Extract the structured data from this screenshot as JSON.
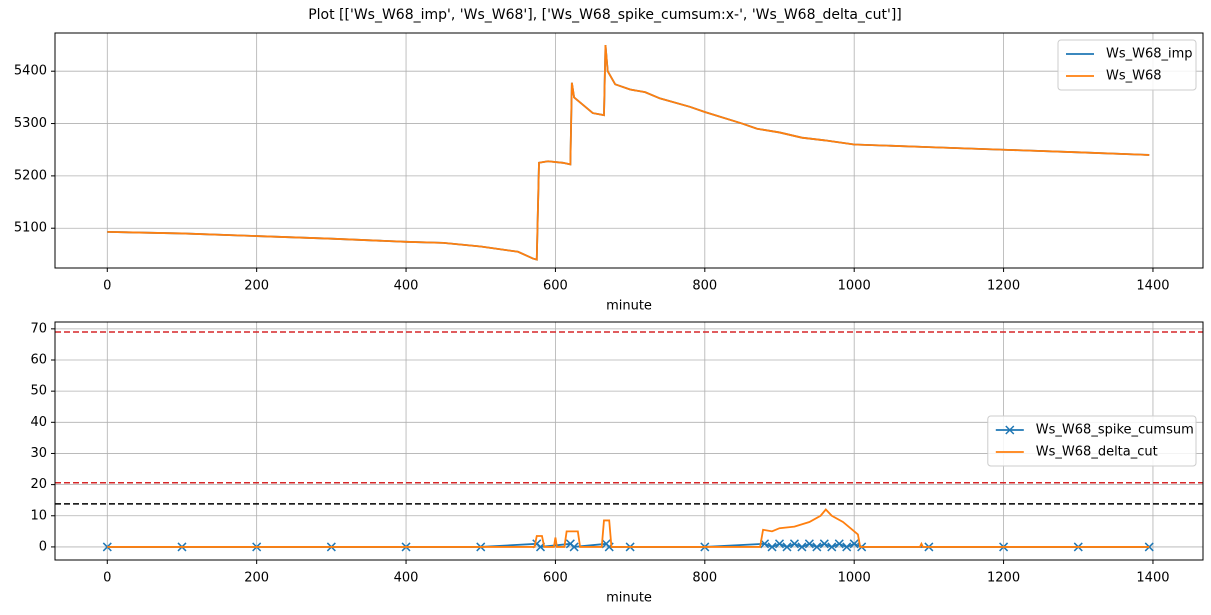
{
  "title": "Plot [['Ws_W68_imp', 'Ws_W68'], ['Ws_W68_spike_cumsum:x-', 'Ws_W68_delta_cut']]",
  "chart_data": [
    {
      "type": "line",
      "xlabel": "minute",
      "xlim": [
        -70,
        1467
      ],
      "xticks": [
        0,
        200,
        400,
        600,
        800,
        1000,
        1200,
        1400
      ],
      "ylim": [
        5024,
        5473
      ],
      "yticks": [
        5100,
        5200,
        5300,
        5400
      ],
      "grid": true,
      "legend": "upper right",
      "x": [
        0,
        100,
        200,
        300,
        400,
        450,
        500,
        550,
        570,
        575,
        578,
        590,
        610,
        620,
        622,
        625,
        650,
        665,
        667,
        670,
        680,
        700,
        720,
        740,
        780,
        800,
        850,
        870,
        900,
        930,
        960,
        1000,
        1100,
        1200,
        1300,
        1395
      ],
      "series": [
        {
          "name": "Ws_W68_imp",
          "color": "#1f77b4",
          "values": [
            5093,
            5090,
            5085,
            5080,
            5074,
            5072,
            5065,
            5055,
            5042,
            5040,
            5225,
            5228,
            5225,
            5222,
            5378,
            5350,
            5320,
            5316,
            5450,
            5400,
            5375,
            5365,
            5360,
            5348,
            5332,
            5322,
            5300,
            5290,
            5283,
            5273,
            5268,
            5260,
            5255,
            5250,
            5245,
            5240
          ]
        },
        {
          "name": "Ws_W68",
          "color": "#ff7f0e",
          "values": [
            5093,
            5090,
            5085,
            5080,
            5074,
            5072,
            5065,
            5055,
            5042,
            5040,
            5225,
            5228,
            5225,
            5222,
            5378,
            5350,
            5320,
            5316,
            5450,
            5400,
            5375,
            5365,
            5360,
            5348,
            5332,
            5322,
            5300,
            5290,
            5283,
            5273,
            5268,
            5260,
            5255,
            5250,
            5245,
            5240
          ]
        }
      ]
    },
    {
      "type": "line",
      "xlabel": "minute",
      "xlim": [
        -70,
        1467
      ],
      "xticks": [
        0,
        200,
        400,
        600,
        800,
        1000,
        1200,
        1400
      ],
      "ylim": [
        -4.2,
        72.2
      ],
      "yticks": [
        0,
        10,
        20,
        30,
        40,
        50,
        60,
        70
      ],
      "grid": true,
      "legend": "center right",
      "hlines": [
        {
          "value": 69,
          "color": "#d62728"
        },
        {
          "value": 20.6,
          "color": "#d62728"
        },
        {
          "value": 13.8,
          "color": "#000000"
        }
      ],
      "series": [
        {
          "name": "Ws_W68_spike_cumsum",
          "color": "#1f77b4",
          "marker": "x",
          "x": [
            0,
            100,
            200,
            300,
            400,
            500,
            575,
            580,
            620,
            625,
            668,
            672,
            700,
            800,
            880,
            890,
            900,
            910,
            920,
            930,
            940,
            950,
            960,
            970,
            980,
            990,
            1000,
            1010,
            1100,
            1200,
            1300,
            1395
          ],
          "values": [
            0,
            0,
            0,
            0,
            0,
            0,
            1,
            0,
            1,
            0,
            1,
            0,
            0,
            0,
            1,
            0,
            1,
            0,
            1,
            0,
            1,
            0,
            1,
            0,
            1,
            0,
            1,
            0,
            0,
            0,
            0,
            0
          ]
        },
        {
          "name": "Ws_W68_delta_cut",
          "color": "#ff7f0e",
          "x": [
            0,
            572,
            575,
            582,
            585,
            598,
            600,
            602,
            612,
            615,
            630,
            633,
            662,
            665,
            672,
            675,
            874,
            878,
            890,
            900,
            920,
            940,
            955,
            962,
            970,
            985,
            1000,
            1005,
            1008,
            1088,
            1090,
            1092,
            1395
          ],
          "values": [
            0,
            0,
            3.5,
            3.5,
            0,
            0,
            3,
            0,
            0,
            5,
            5,
            0,
            0,
            8.5,
            8.5,
            0,
            0,
            5.5,
            5,
            6,
            6.5,
            8,
            10,
            12,
            10,
            8,
            5,
            4,
            0,
            0,
            1,
            0,
            0
          ]
        }
      ]
    }
  ]
}
